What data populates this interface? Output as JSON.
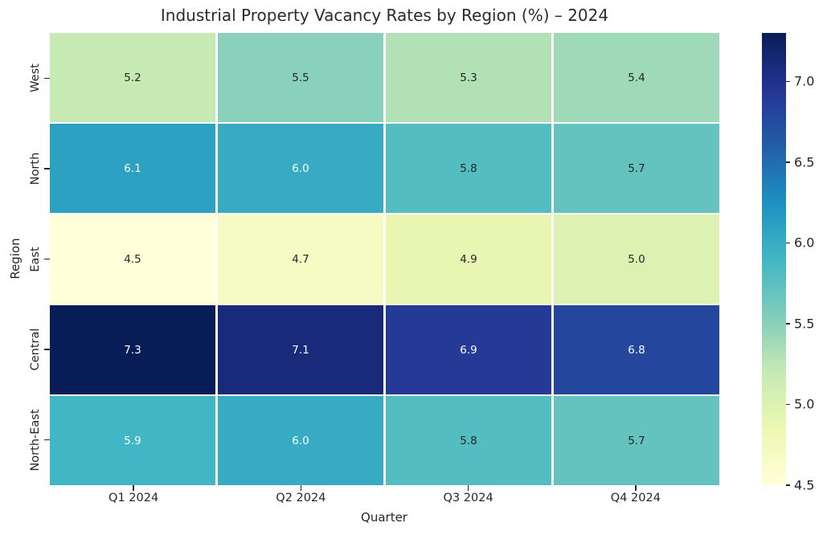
{
  "chart_data": {
    "type": "heatmap",
    "title": "Industrial Property Vacancy Rates by Region (%) – 2024",
    "xlabel": "Quarter",
    "ylabel": "Region",
    "rows": [
      "West",
      "North",
      "East",
      "Central",
      "North-East"
    ],
    "columns": [
      "Q1 2024",
      "Q2 2024",
      "Q3 2024",
      "Q4 2024"
    ],
    "values": [
      [
        5.2,
        5.5,
        5.3,
        5.4
      ],
      [
        6.1,
        6.0,
        5.8,
        5.7
      ],
      [
        4.5,
        4.7,
        4.9,
        5.0
      ],
      [
        7.3,
        7.1,
        6.9,
        6.8
      ],
      [
        5.9,
        6.0,
        5.8,
        5.7
      ]
    ],
    "vmin": 4.5,
    "vmax": 7.3,
    "colormap_name": "YlGnBu",
    "colormap_anchors": [
      "#ffffd9",
      "#edf8b1",
      "#c7e9b4",
      "#7fcdbb",
      "#41b6c4",
      "#1d91c0",
      "#225ea8",
      "#253494",
      "#081d58"
    ],
    "colorbar_ticks": [
      "7.0",
      "6.5",
      "6.0",
      "5.5",
      "5.0",
      "4.5"
    ],
    "annotation_color_light_cell": "#262626",
    "annotation_color_dark_cell": "#ffffff",
    "grid_line_color": "#ffffff",
    "legend_position": "right-colorbar",
    "grid": "off"
  }
}
